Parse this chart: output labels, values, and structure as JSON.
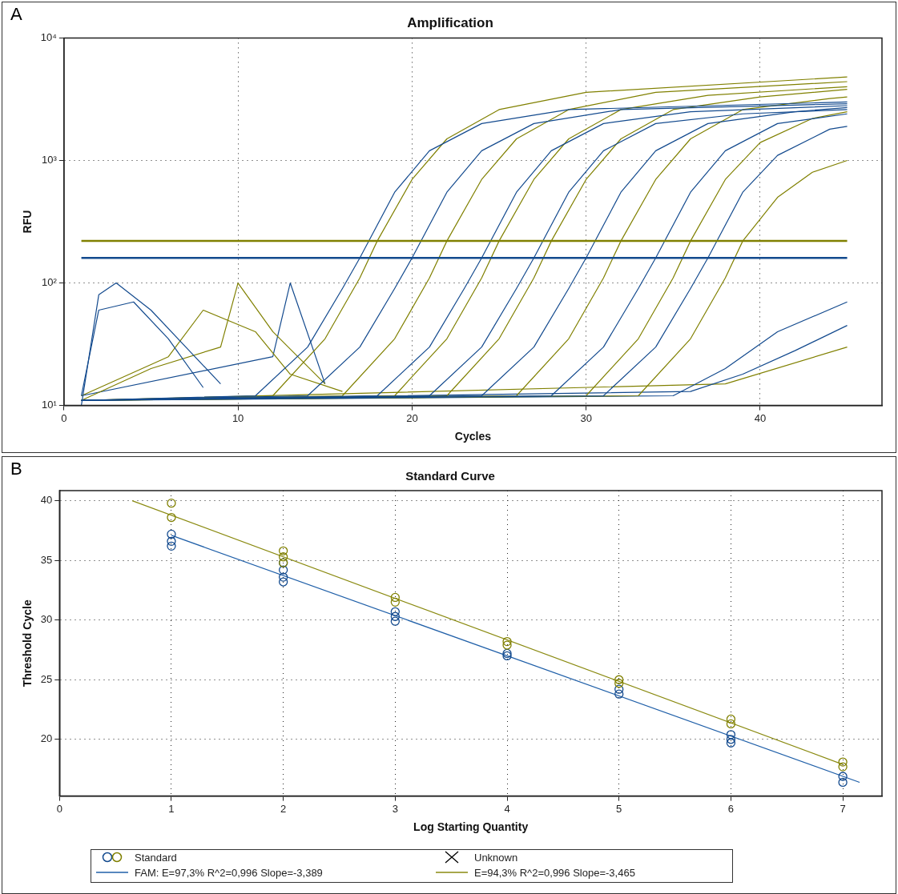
{
  "chart_data": [
    {
      "type": "line",
      "title": "Amplification",
      "xlabel": "Cycles",
      "ylabel": "RFU",
      "annotations": [
        "A"
      ],
      "log": "y",
      "grid": true,
      "legend": false,
      "marker": "none",
      "line_style": "solid",
      "xlim": [
        0,
        47
      ],
      "xticks": [
        0,
        10,
        20,
        30,
        40
      ],
      "ylim": [
        10,
        10000
      ],
      "yticks": [
        {
          "value": 10,
          "label": "10¹"
        },
        {
          "value": 100,
          "label": "10²"
        },
        {
          "value": 1000,
          "label": "10³"
        },
        {
          "value": 10000,
          "label": "10⁴"
        }
      ],
      "ref_lines": [
        {
          "axis": "y",
          "value": 220,
          "color": "#808000"
        },
        {
          "axis": "y",
          "value": 160,
          "color": "#134a8e"
        }
      ],
      "series": [
        {
          "color": "#134a8e",
          "x": [
            1,
            11,
            14,
            16,
            17,
            19,
            21,
            24,
            29,
            45
          ],
          "values": [
            11,
            12,
            30,
            90,
            160,
            550,
            1200,
            2000,
            2600,
            3000
          ]
        },
        {
          "color": "#134a8e",
          "x": [
            1,
            14,
            17,
            19,
            20,
            22,
            24,
            27,
            32,
            45
          ],
          "values": [
            11,
            12,
            30,
            90,
            160,
            550,
            1200,
            2000,
            2600,
            2900
          ]
        },
        {
          "color": "#134a8e",
          "x": [
            1,
            18,
            21,
            23,
            24,
            26,
            28,
            31,
            36,
            45
          ],
          "values": [
            11,
            12,
            30,
            90,
            160,
            550,
            1200,
            2000,
            2500,
            2800
          ]
        },
        {
          "color": "#134a8e",
          "x": [
            1,
            21,
            24,
            26,
            27,
            29,
            31,
            34,
            39,
            45
          ],
          "values": [
            11,
            12,
            30,
            90,
            160,
            550,
            1200,
            2000,
            2400,
            2600
          ]
        },
        {
          "color": "#134a8e",
          "x": [
            1,
            24,
            27,
            29,
            30,
            32,
            34,
            37,
            42,
            45
          ],
          "values": [
            11,
            12,
            30,
            90,
            160,
            550,
            1200,
            2000,
            2500,
            2700
          ]
        },
        {
          "color": "#134a8e",
          "x": [
            1,
            28,
            31,
            33,
            34,
            36,
            38,
            41,
            45
          ],
          "values": [
            11,
            12,
            30,
            90,
            160,
            550,
            1200,
            2000,
            2400
          ]
        },
        {
          "color": "#134a8e",
          "x": [
            1,
            31,
            34,
            36,
            37,
            39,
            41,
            44,
            45
          ],
          "values": [
            11,
            12,
            30,
            90,
            160,
            550,
            1100,
            1800,
            1900
          ]
        },
        {
          "color": "#808000",
          "x": [
            1,
            12,
            15,
            17,
            18,
            20,
            22,
            25,
            30,
            45
          ],
          "values": [
            11,
            12,
            35,
            110,
            220,
            700,
            1500,
            2600,
            3600,
            4800
          ]
        },
        {
          "color": "#808000",
          "x": [
            1,
            16,
            19,
            21,
            22,
            24,
            26,
            29,
            34,
            45
          ],
          "values": [
            11,
            12,
            35,
            110,
            220,
            700,
            1500,
            2600,
            3600,
            4400
          ]
        },
        {
          "color": "#808000",
          "x": [
            1,
            19,
            22,
            24,
            25,
            27,
            29,
            32,
            37,
            45
          ],
          "values": [
            11,
            12,
            35,
            110,
            220,
            700,
            1500,
            2600,
            3400,
            4000
          ]
        },
        {
          "color": "#808000",
          "x": [
            1,
            22,
            25,
            27,
            28,
            30,
            32,
            35,
            40,
            45
          ],
          "values": [
            11,
            12,
            35,
            110,
            220,
            700,
            1500,
            2600,
            3300,
            3800
          ]
        },
        {
          "color": "#808000",
          "x": [
            1,
            26,
            29,
            31,
            32,
            34,
            36,
            39,
            44,
            45
          ],
          "values": [
            11,
            12,
            35,
            110,
            220,
            700,
            1500,
            2600,
            3200,
            3300
          ]
        },
        {
          "color": "#808000",
          "x": [
            1,
            30,
            33,
            35,
            36,
            38,
            40,
            43,
            45
          ],
          "values": [
            11,
            12,
            35,
            110,
            220,
            700,
            1400,
            2200,
            2500
          ]
        },
        {
          "color": "#808000",
          "x": [
            1,
            33,
            36,
            38,
            39,
            41,
            43,
            45
          ],
          "values": [
            11,
            12,
            35,
            110,
            220,
            500,
            800,
            1000
          ]
        },
        {
          "color": "#134a8e",
          "x": [
            1,
            2,
            3,
            5,
            7,
            9
          ],
          "values": [
            10,
            80,
            100,
            60,
            30,
            15
          ]
        },
        {
          "color": "#134a8e",
          "x": [
            1,
            2,
            4,
            6,
            8
          ],
          "values": [
            12,
            60,
            70,
            35,
            14
          ]
        },
        {
          "color": "#808000",
          "x": [
            1,
            5,
            9,
            10,
            12,
            15
          ],
          "values": [
            11,
            20,
            30,
            100,
            40,
            15
          ]
        },
        {
          "color": "#808000",
          "x": [
            1,
            6,
            8,
            11,
            13,
            16
          ],
          "values": [
            12,
            25,
            60,
            40,
            18,
            13
          ]
        },
        {
          "color": "#134a8e",
          "x": [
            1,
            12,
            13,
            15
          ],
          "values": [
            12,
            25,
            100,
            15
          ]
        },
        {
          "color": "#134a8e",
          "x": [
            1,
            35,
            38,
            41,
            45
          ],
          "values": [
            11,
            12,
            20,
            40,
            70
          ]
        },
        {
          "color": "#134a8e",
          "x": [
            1,
            36,
            39,
            42,
            45
          ],
          "values": [
            11,
            13,
            18,
            28,
            45
          ]
        },
        {
          "color": "#808000",
          "x": [
            1,
            38,
            45
          ],
          "values": [
            11,
            15,
            30
          ]
        }
      ]
    },
    {
      "type": "scatter",
      "title": "Standard Curve",
      "xlabel": "Log Starting Quantity",
      "ylabel": "Threshold Cycle",
      "annotations": [
        "B"
      ],
      "grid": true,
      "legend": "bottom",
      "xlim": [
        0,
        7.35
      ],
      "xticks": [
        0,
        1,
        2,
        3,
        4,
        5,
        6,
        7
      ],
      "ylim": [
        15.25,
        40.85
      ],
      "yticks": [
        20,
        25,
        30,
        35,
        40
      ],
      "series": [
        {
          "name": "Standard",
          "marker": "circle",
          "x": [
            1,
            1,
            1,
            2,
            2,
            2,
            2,
            3,
            3,
            3,
            4,
            4,
            5,
            5,
            6,
            6,
            6,
            7,
            7,
            1,
            1,
            2,
            2,
            2,
            3,
            3,
            4,
            4,
            5,
            5,
            6,
            6,
            7,
            7
          ],
          "values": [
            37.2,
            36.6,
            36.2,
            34.8,
            34.2,
            33.6,
            33.2,
            30.7,
            30.3,
            29.9,
            27.2,
            27.0,
            24.2,
            23.8,
            20.4,
            20.0,
            19.7,
            16.9,
            16.4,
            39.8,
            38.6,
            35.8,
            35.3,
            34.8,
            31.9,
            31.5,
            28.2,
            27.9,
            25.0,
            24.7,
            21.7,
            21.3,
            18.1,
            17.7
          ],
          "colors": [
            "#134a8e",
            "#134a8e",
            "#134a8e",
            "#134a8e",
            "#134a8e",
            "#134a8e",
            "#134a8e",
            "#134a8e",
            "#134a8e",
            "#134a8e",
            "#134a8e",
            "#134a8e",
            "#134a8e",
            "#134a8e",
            "#134a8e",
            "#134a8e",
            "#134a8e",
            "#134a8e",
            "#134a8e",
            "#808000",
            "#808000",
            "#808000",
            "#808000",
            "#808000",
            "#808000",
            "#808000",
            "#808000",
            "#808000",
            "#808000",
            "#808000",
            "#808000",
            "#808000",
            "#808000",
            "#808000"
          ]
        },
        {
          "name": "Unknown",
          "marker": "cross",
          "color": "#000000"
        },
        {
          "name": "FAM: E=97,3% R^2=0,996 Slope=-3,389",
          "type": "line",
          "marker": "none",
          "color": "#1f5fa8",
          "x": [
            1,
            7.15
          ],
          "values": [
            37.1,
            16.4
          ]
        },
        {
          "name": "E=94,3% R^2=0,996 Slope=-3,465",
          "type": "line",
          "marker": "none",
          "color": "#8a8a10",
          "x": [
            0.65,
            7
          ],
          "values": [
            40,
            17.9
          ]
        }
      ]
    }
  ]
}
